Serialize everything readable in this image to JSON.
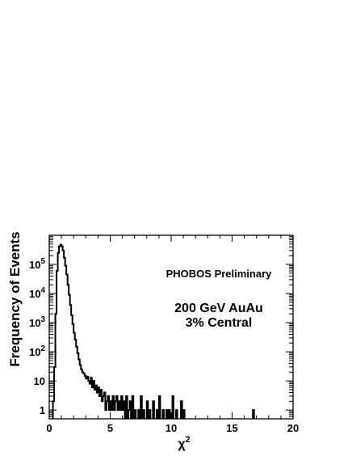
{
  "chart_data": {
    "type": "histogram",
    "xlabel": "χ",
    "xlabel_superscript": "2",
    "ylabel": "Frequency of Events",
    "xlim": [
      0,
      20
    ],
    "ylim": [
      0.5,
      1000000
    ],
    "y_scale": "log",
    "bin_width": 0.1,
    "x_ticks": [
      0,
      5,
      10,
      15,
      20
    ],
    "x_tick_labels": [
      "0",
      "5",
      "10",
      "15",
      "20"
    ],
    "y_ticks": [
      1,
      10,
      100,
      1000,
      10000,
      100000
    ],
    "y_tick_labels": [
      {
        "base": "1",
        "exp": ""
      },
      {
        "base": "10",
        "exp": ""
      },
      {
        "base": "10",
        "exp": "2"
      },
      {
        "base": "10",
        "exp": "3"
      },
      {
        "base": "10",
        "exp": "4"
      },
      {
        "base": "10",
        "exp": "5"
      }
    ],
    "annotations": [
      "PHOBOS Preliminary",
      "200 GeV AuAu",
      "3% Central"
    ],
    "bins": [
      [
        0.3,
        2
      ],
      [
        0.4,
        30
      ],
      [
        0.5,
        2000
      ],
      [
        0.6,
        60000
      ],
      [
        0.7,
        250000
      ],
      [
        0.8,
        420000
      ],
      [
        0.9,
        470000
      ],
      [
        1.0,
        420000
      ],
      [
        1.1,
        300000
      ],
      [
        1.2,
        170000
      ],
      [
        1.3,
        90000
      ],
      [
        1.4,
        45000
      ],
      [
        1.5,
        20000
      ],
      [
        1.6,
        9000
      ],
      [
        1.7,
        4000
      ],
      [
        1.8,
        1800
      ],
      [
        1.9,
        900
      ],
      [
        2.0,
        450
      ],
      [
        2.1,
        260
      ],
      [
        2.2,
        150
      ],
      [
        2.3,
        90
      ],
      [
        2.4,
        55
      ],
      [
        2.5,
        35
      ],
      [
        2.6,
        25
      ],
      [
        2.7,
        20
      ],
      [
        2.8,
        18
      ],
      [
        2.9,
        15
      ],
      [
        3.0,
        12
      ],
      [
        3.1,
        14
      ],
      [
        3.2,
        10
      ],
      [
        3.3,
        8
      ],
      [
        3.4,
        13
      ],
      [
        3.5,
        6
      ],
      [
        3.6,
        10
      ],
      [
        3.7,
        5
      ],
      [
        3.8,
        7
      ],
      [
        3.9,
        4
      ],
      [
        4.0,
        6
      ],
      [
        4.1,
        3
      ],
      [
        4.2,
        5
      ],
      [
        4.3,
        2
      ],
      [
        4.4,
        3
      ],
      [
        4.5,
        4
      ],
      [
        4.6,
        1
      ],
      [
        4.7,
        2
      ],
      [
        4.8,
        3
      ],
      [
        4.9,
        1
      ],
      [
        5.0,
        2
      ],
      [
        5.1,
        1
      ],
      [
        5.2,
        3
      ],
      [
        5.3,
        1
      ],
      [
        5.4,
        2
      ],
      [
        5.5,
        3
      ],
      [
        5.6,
        1
      ],
      [
        5.7,
        2
      ],
      [
        5.8,
        1
      ],
      [
        5.9,
        3
      ],
      [
        6.0,
        1
      ],
      [
        6.1,
        2
      ],
      [
        6.3,
        3
      ],
      [
        6.5,
        1
      ],
      [
        6.6,
        2
      ],
      [
        6.8,
        3
      ],
      [
        7.0,
        1
      ],
      [
        7.3,
        1
      ],
      [
        7.5,
        3
      ],
      [
        7.7,
        1
      ],
      [
        8.0,
        2
      ],
      [
        8.2,
        1
      ],
      [
        8.5,
        2
      ],
      [
        8.8,
        1
      ],
      [
        9.0,
        3
      ],
      [
        9.3,
        1
      ],
      [
        9.6,
        1
      ],
      [
        9.8,
        1
      ],
      [
        10.1,
        3
      ],
      [
        10.4,
        1
      ],
      [
        10.8,
        2
      ],
      [
        11.0,
        1
      ],
      [
        16.7,
        1
      ]
    ]
  }
}
